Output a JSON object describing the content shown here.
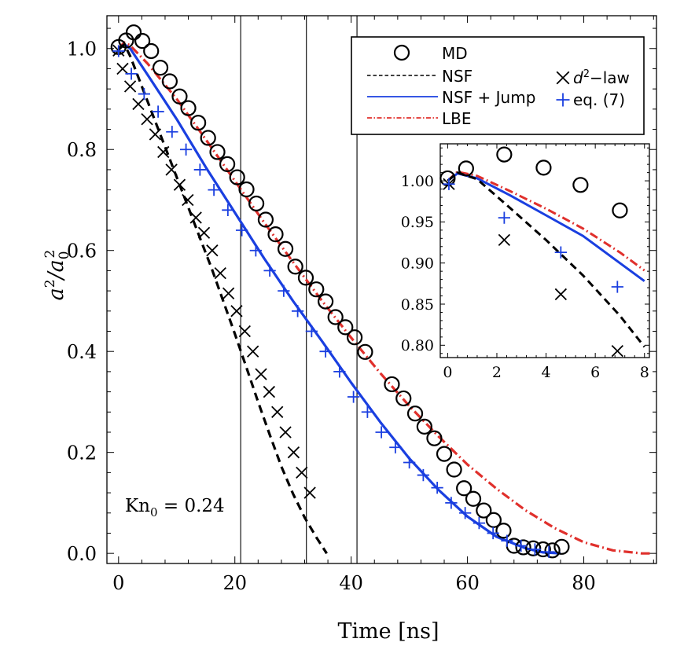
{
  "chart_data": [
    {
      "type": "line",
      "panel": "main",
      "xlabel": "Time [ns]",
      "ylabel_main": "a",
      "ylabel_sup": "2",
      "ylabel_slash": "/a",
      "ylabel_sub": "0",
      "xlim": [
        -2,
        92.5
      ],
      "ylim": [
        -0.02,
        1.065
      ],
      "xticks": [
        0,
        20,
        40,
        60,
        80
      ],
      "yticks": [
        0.0,
        0.2,
        0.4,
        0.6,
        0.8,
        1.0
      ],
      "xtick_labels": [
        "0",
        "20",
        "40",
        "60",
        "80"
      ],
      "ytick_labels": [
        "0.0",
        "0.2",
        "0.4",
        "0.6",
        "0.8",
        "1.0"
      ],
      "annotation": {
        "main": "Kn",
        "sub": "0",
        "rest": " = 0.24"
      },
      "vertical_lines": [
        21,
        32.3,
        41
      ],
      "legend": {
        "position": "top-right",
        "entries": [
          "MD",
          "NSF",
          "NSF + Jump",
          "LBE",
          "d",
          "2",
          "−law",
          "eq. (7)"
        ]
      },
      "series": [
        {
          "name": "MD",
          "style": "circle",
          "color": "#000000",
          "x": [
            0,
            1.3,
            2.6,
            4.1,
            5.6,
            7.2,
            8.8,
            10.5,
            12,
            13.7,
            15.4,
            17,
            18.7,
            20.4,
            22,
            23.7,
            25.3,
            27,
            28.7,
            30.4,
            32.2,
            34,
            35.6,
            37.3,
            39,
            40.6,
            42.4,
            47,
            49,
            51,
            52.6,
            54.3,
            56,
            57.7,
            59.4,
            61,
            62.8,
            64.5,
            66.2,
            68,
            69.6,
            71.3,
            73,
            74.6,
            76.2
          ],
          "y": [
            1.003,
            1.016,
            1.032,
            1.015,
            0.995,
            0.962,
            0.935,
            0.905,
            0.882,
            0.853,
            0.823,
            0.795,
            0.771,
            0.745,
            0.721,
            0.693,
            0.661,
            0.632,
            0.603,
            0.568,
            0.546,
            0.523,
            0.499,
            0.468,
            0.448,
            0.428,
            0.399,
            0.335,
            0.307,
            0.277,
            0.251,
            0.228,
            0.197,
            0.166,
            0.129,
            0.108,
            0.085,
            0.066,
            0.045,
            0.015,
            0.012,
            0.01,
            0.008,
            0.006,
            0.013
          ]
        },
        {
          "name": "NSF",
          "style": "dashed",
          "color": "#000000",
          "x": [
            0,
            1,
            2,
            4,
            6,
            8,
            10,
            12,
            14,
            16,
            18,
            20,
            22,
            24,
            26,
            28,
            30,
            32,
            34,
            35.8
          ],
          "y": [
            1.0,
            1.008,
            0.985,
            0.925,
            0.865,
            0.805,
            0.745,
            0.685,
            0.625,
            0.565,
            0.5,
            0.435,
            0.368,
            0.3,
            0.235,
            0.172,
            0.118,
            0.071,
            0.032,
            0.0
          ]
        },
        {
          "name": "NSF + Jump",
          "style": "solid",
          "color": "#1a3fe0",
          "x": [
            0,
            1,
            2,
            5,
            10,
            15,
            20,
            25,
            30,
            35,
            40,
            45,
            50,
            55,
            60,
            65,
            70,
            73,
            76
          ],
          "y": [
            1.0,
            1.008,
            1.0,
            0.948,
            0.86,
            0.765,
            0.675,
            0.585,
            0.5,
            0.42,
            0.338,
            0.26,
            0.188,
            0.126,
            0.073,
            0.033,
            0.01,
            0.002,
            0.0
          ]
        },
        {
          "name": "LBE",
          "style": "dashdot",
          "color": "#e0302c",
          "x": [
            0,
            1,
            2,
            5,
            10,
            15,
            20,
            25,
            30,
            35,
            40,
            45,
            50,
            55,
            60,
            65,
            70,
            75,
            80,
            85,
            90,
            91.5
          ],
          "y": [
            1.0,
            1.012,
            1.006,
            0.97,
            0.9,
            0.82,
            0.738,
            0.656,
            0.577,
            0.5,
            0.427,
            0.357,
            0.292,
            0.232,
            0.176,
            0.128,
            0.085,
            0.05,
            0.022,
            0.006,
            0.0,
            0.0
          ]
        },
        {
          "name": "d2-law",
          "style": "cross",
          "color": "#000000",
          "x": [
            0,
            0.7,
            2,
            3.4,
            4.9,
            6.3,
            7.7,
            9.1,
            10.5,
            11.9,
            13.3,
            14.7,
            16.1,
            17.5,
            18.9,
            20.3,
            21.7,
            23.1,
            24.5,
            25.9,
            27.3,
            28.7,
            30.1,
            31.5,
            32.9
          ],
          "y": [
            0.996,
            0.96,
            0.925,
            0.89,
            0.86,
            0.83,
            0.795,
            0.76,
            0.73,
            0.7,
            0.665,
            0.635,
            0.6,
            0.555,
            0.515,
            0.48,
            0.44,
            0.4,
            0.355,
            0.32,
            0.28,
            0.24,
            0.2,
            0.16,
            0.12
          ]
        },
        {
          "name": "eq. (7)",
          "style": "plus",
          "color": "#1a3fe0",
          "x": [
            0,
            2.2,
            4.4,
            6.8,
            9.2,
            11.6,
            14,
            16.4,
            18.8,
            21.2,
            23.6,
            26,
            28.4,
            30.8,
            33.2,
            35.6,
            38,
            40.4,
            42.8,
            45.2,
            47.6,
            50,
            52.4,
            54.8,
            57.2,
            59.6,
            62,
            64.4,
            66.8,
            69.2,
            71.6,
            74
          ],
          "y": [
            0.995,
            0.95,
            0.91,
            0.875,
            0.835,
            0.8,
            0.76,
            0.72,
            0.68,
            0.64,
            0.6,
            0.56,
            0.52,
            0.48,
            0.44,
            0.4,
            0.36,
            0.31,
            0.28,
            0.24,
            0.21,
            0.18,
            0.155,
            0.13,
            0.1,
            0.08,
            0.06,
            0.04,
            0.025,
            0.015,
            0.008,
            0.003
          ]
        }
      ]
    },
    {
      "type": "line",
      "panel": "inset",
      "xlim": [
        -0.3,
        8.2
      ],
      "ylim": [
        0.785,
        1.045
      ],
      "xticks": [
        0,
        2,
        4,
        6,
        8
      ],
      "yticks": [
        0.8,
        0.85,
        0.9,
        0.95,
        1.0
      ],
      "xtick_labels": [
        "0",
        "2",
        "4",
        "6",
        "8"
      ],
      "ytick_labels": [
        "0.80",
        "0.85",
        "0.90",
        "0.95",
        "1.00"
      ],
      "series": [
        {
          "name": "MD",
          "style": "circle",
          "color": "#000000",
          "x": [
            0,
            0.75,
            2.3,
            3.9,
            5.4,
            7.0
          ],
          "y": [
            1.003,
            1.015,
            1.032,
            1.016,
            0.995,
            0.964
          ]
        },
        {
          "name": "NSF",
          "style": "dashed",
          "color": "#000000",
          "x": [
            0,
            0.4,
            1.2,
            2.5,
            4,
            5.5,
            7,
            8
          ],
          "y": [
            1.0,
            1.01,
            1.002,
            0.968,
            0.928,
            0.885,
            0.836,
            0.798
          ]
        },
        {
          "name": "NSF + Jump",
          "style": "solid",
          "color": "#1a3fe0",
          "x": [
            0,
            0.4,
            1.2,
            2.5,
            4,
            5.5,
            7,
            8
          ],
          "y": [
            1.0,
            1.009,
            1.003,
            0.983,
            0.958,
            0.933,
            0.9,
            0.878
          ]
        },
        {
          "name": "LBE",
          "style": "dashdot",
          "color": "#e0302c",
          "x": [
            0,
            0.4,
            1.2,
            2.5,
            4,
            5.5,
            7,
            8
          ],
          "y": [
            1.0,
            1.011,
            1.006,
            0.988,
            0.966,
            0.942,
            0.913,
            0.891
          ]
        },
        {
          "name": "d2-law",
          "style": "cross",
          "color": "#000000",
          "x": [
            0.05,
            2.3,
            4.6,
            6.9
          ],
          "y": [
            0.996,
            0.928,
            0.862,
            0.793
          ]
        },
        {
          "name": "eq. (7)",
          "style": "plus",
          "color": "#1a3fe0",
          "x": [
            0.05,
            2.3,
            4.6,
            6.9
          ],
          "y": [
            0.996,
            0.955,
            0.913,
            0.871
          ]
        }
      ]
    }
  ]
}
